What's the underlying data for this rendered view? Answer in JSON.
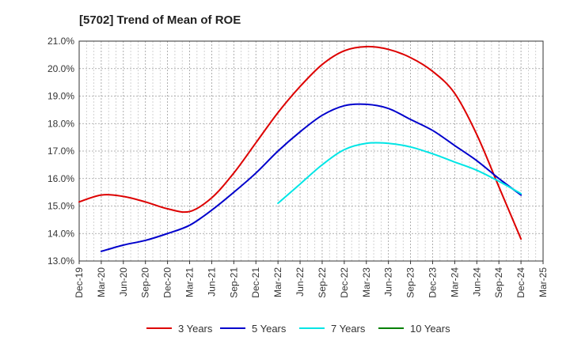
{
  "chart_data": {
    "type": "line",
    "title": "[5702]  Trend of Mean of ROE",
    "xlabel": "",
    "ylabel": "",
    "ylim": [
      13.0,
      21.0
    ],
    "y_ticks": [
      13.0,
      14.0,
      15.0,
      16.0,
      17.0,
      18.0,
      19.0,
      20.0,
      21.0
    ],
    "y_tick_labels": [
      "13.0%",
      "14.0%",
      "15.0%",
      "16.0%",
      "17.0%",
      "18.0%",
      "19.0%",
      "20.0%",
      "21.0%"
    ],
    "x_tick_labels": [
      "Dec-19",
      "Mar-20",
      "Jun-20",
      "Sep-20",
      "Dec-20",
      "Mar-21",
      "Jun-21",
      "Sep-21",
      "Dec-21",
      "Mar-22",
      "Jun-22",
      "Sep-22",
      "Dec-22",
      "Mar-23",
      "Jun-23",
      "Sep-23",
      "Dec-23",
      "Mar-24",
      "Jun-24",
      "Sep-24",
      "Dec-24",
      "Mar-25"
    ],
    "grid": true,
    "legend_position": "bottom",
    "series": [
      {
        "name": "3 Years",
        "color": "#dd0000",
        "values": [
          15.15,
          15.4,
          15.35,
          15.15,
          14.9,
          14.8,
          15.3,
          16.2,
          17.3,
          18.4,
          19.35,
          20.15,
          20.65,
          20.8,
          20.7,
          20.4,
          19.9,
          19.1,
          17.6,
          15.7,
          13.8,
          null
        ]
      },
      {
        "name": "5 Years",
        "color": "#0000cc",
        "values": [
          null,
          13.35,
          13.58,
          13.75,
          14.0,
          14.3,
          14.85,
          15.5,
          16.2,
          17.0,
          17.7,
          18.3,
          18.65,
          18.7,
          18.55,
          18.15,
          17.75,
          17.2,
          16.65,
          16.0,
          15.4,
          null
        ]
      },
      {
        "name": "7 Years",
        "color": "#00e5e5",
        "values": [
          null,
          null,
          null,
          null,
          null,
          null,
          null,
          null,
          null,
          15.1,
          15.8,
          16.5,
          17.05,
          17.28,
          17.28,
          17.15,
          16.9,
          16.6,
          16.3,
          15.9,
          15.45,
          null
        ]
      },
      {
        "name": "10 Years",
        "color": "#008000",
        "values": [
          null,
          null,
          null,
          null,
          null,
          null,
          null,
          null,
          null,
          null,
          null,
          null,
          null,
          null,
          null,
          null,
          null,
          null,
          null,
          null,
          null,
          null
        ]
      }
    ]
  }
}
